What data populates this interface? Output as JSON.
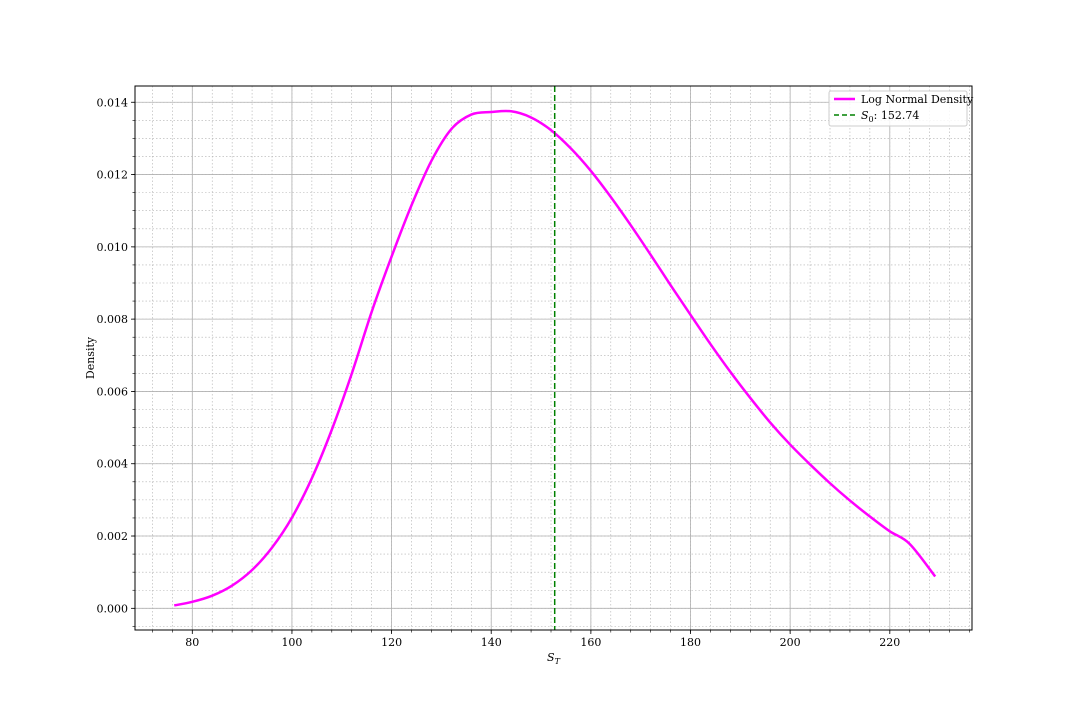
{
  "chart_data": {
    "type": "line",
    "title": "",
    "xlabel_main": "S",
    "xlabel_sub": "T",
    "ylabel": "Density",
    "xlim": [
      68.5,
      236.5
    ],
    "ylim": [
      -0.0006,
      0.01445
    ],
    "x_ticks": [
      80,
      100,
      120,
      140,
      160,
      180,
      200,
      220
    ],
    "y_ticks": [
      0.0,
      0.002,
      0.004,
      0.006,
      0.008,
      0.01,
      0.012,
      0.014
    ],
    "x_tick_labels": [
      "80",
      "100",
      "120",
      "140",
      "160",
      "180",
      "200",
      "220"
    ],
    "y_tick_labels": [
      "0.000",
      "0.002",
      "0.004",
      "0.006",
      "0.008",
      "0.010",
      "0.012",
      "0.014"
    ],
    "x_minor_step": 4,
    "y_minor_step": 0.0005,
    "grid": {
      "major": true,
      "minor": true
    },
    "legend_position": "top-right",
    "series": [
      {
        "name": "Log Normal Density",
        "style": "solid",
        "color": "#ff00ff",
        "x": [
          76.37,
          80,
          84,
          88,
          92,
          96,
          100,
          104,
          108,
          112,
          116,
          120,
          124,
          128,
          132,
          136,
          140,
          144,
          148,
          152,
          156,
          160,
          164,
          168,
          172,
          176,
          180,
          184,
          188,
          192,
          196,
          200,
          204,
          208,
          212,
          216,
          220,
          224,
          229.11
        ],
        "y": [
          8e-05,
          0.00018,
          0.00035,
          0.00063,
          0.00106,
          0.00168,
          0.00251,
          0.0036,
          0.00494,
          0.00649,
          0.0082,
          0.00973,
          0.01115,
          0.01238,
          0.01326,
          0.01366,
          0.01373,
          0.01375,
          0.01358,
          0.01323,
          0.01272,
          0.0121,
          0.01138,
          0.0106,
          0.00978,
          0.00894,
          0.00812,
          0.00731,
          0.00654,
          0.00582,
          0.00514,
          0.00453,
          0.00398,
          0.00346,
          0.00298,
          0.00254,
          0.00213,
          0.00178,
          0.00088
        ]
      },
      {
        "name": "$S_0:152.74$",
        "label_main": "S",
        "label_sub": "0",
        "label_value": ": 152.74",
        "style": "dashed",
        "color": "#008000",
        "vline_x": 152.74
      }
    ]
  }
}
